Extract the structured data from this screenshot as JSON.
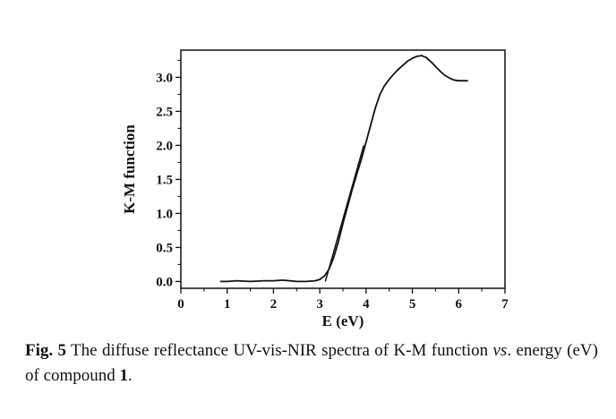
{
  "chart_data": {
    "type": "line",
    "xlabel": "E (eV)",
    "ylabel": "K-M function",
    "xlim": [
      0,
      7
    ],
    "ylim": [
      -0.1,
      3.4
    ],
    "xticks": [
      "0",
      "1",
      "2",
      "3",
      "4",
      "5",
      "6",
      "7"
    ],
    "yticks": [
      "0.0",
      "0.5",
      "1.0",
      "1.5",
      "2.0",
      "2.5",
      "3.0"
    ],
    "grid": false,
    "series": [
      {
        "x": [
          0.85,
          1.0,
          1.2,
          1.5,
          1.8,
          2.0,
          2.2,
          2.5,
          2.7,
          2.9,
          3.0,
          3.1,
          3.2,
          3.3,
          3.4,
          3.5,
          3.6,
          3.7,
          3.8,
          3.9,
          4.0,
          4.1,
          4.2,
          4.3,
          4.4,
          4.5,
          4.6,
          4.7,
          4.8,
          4.9,
          5.0,
          5.1,
          5.2,
          5.3,
          5.4,
          5.5,
          5.6,
          5.7,
          5.8,
          5.9,
          6.0,
          6.1,
          6.2
        ],
        "y": [
          0.0,
          0.0,
          0.01,
          0.0,
          0.01,
          0.01,
          0.02,
          0.0,
          0.0,
          0.01,
          0.03,
          0.08,
          0.18,
          0.35,
          0.58,
          0.85,
          1.1,
          1.35,
          1.58,
          1.8,
          2.05,
          2.3,
          2.55,
          2.75,
          2.88,
          2.97,
          3.05,
          3.12,
          3.18,
          3.24,
          3.28,
          3.31,
          3.32,
          3.29,
          3.23,
          3.16,
          3.09,
          3.03,
          2.99,
          2.96,
          2.95,
          2.95,
          2.95
        ]
      }
    ],
    "tangent_line": {
      "x": [
        3.12,
        3.95
      ],
      "y": [
        0.0,
        2.0
      ]
    }
  },
  "caption": {
    "label": "Fig. 5",
    "text_before_italic": " The diffuse reflectance UV-vis-NIR spectra of K-M function ",
    "italic": "vs",
    "text_before_bold": ". energy (eV) of compound ",
    "bold": "1",
    "text_end": "."
  }
}
